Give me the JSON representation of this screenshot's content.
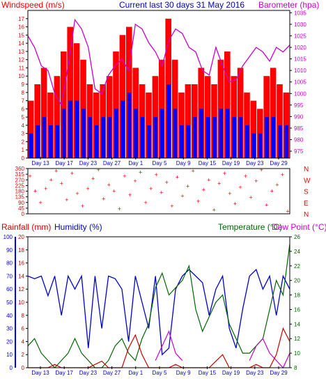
{
  "colors": {
    "frame": "#000000",
    "plot_bg": "#ffffff",
    "wind_speed": "#ff0000",
    "wind_avg": "#0000ff",
    "barometer": "#cc00cc",
    "direction": "#ff0000",
    "rainfall": "#cc0000",
    "humidity": "#0000cc",
    "temperature": "#006600",
    "dewpoint": "#cc00cc",
    "title_blue": "#0000cc",
    "left_axis_blue": "#0000ff",
    "left_axis_red": "#cc0000"
  },
  "header": {
    "wind_label": "Windspeed (m/s)",
    "center_title": "Current last 30 days 31 May 2016",
    "baro_label": "Barometer (hpa)"
  },
  "bottom_header": {
    "rain_label": "Rainfall (mm)",
    "humidity_label": "Humidity (%)",
    "temp_label": "Temperature (°C)",
    "dew_label": "Dew Point (°C)"
  },
  "x_ticks": [
    "Day 13",
    "Day 17",
    "Day 23",
    "Day 27",
    "Day 1",
    "Day 5",
    "Day 9",
    "Day 15",
    "Day 19",
    "Day 23",
    "Day 29"
  ],
  "chart_data": [
    {
      "type": "line",
      "title": "Current last 30 days 31 May 2016",
      "series": [
        {
          "name": "Windspeed (m/s)",
          "axis": "left",
          "ylim": [
            0,
            18
          ],
          "ticks": [
            0,
            1,
            2,
            3,
            4,
            5,
            6,
            7,
            8,
            9,
            10,
            11,
            12,
            13,
            14,
            15,
            16,
            17
          ],
          "values": [
            7,
            9,
            11,
            8,
            10,
            13,
            16,
            14,
            12,
            9,
            8,
            9,
            10,
            13,
            15,
            16,
            11,
            9,
            8,
            10,
            12,
            17,
            12,
            8,
            9,
            9,
            11,
            10,
            9,
            12,
            13,
            10,
            11,
            8,
            7,
            6,
            10,
            11,
            9,
            8
          ]
        },
        {
          "name": "Windspeed avg",
          "axis": "left",
          "values": [
            3,
            4,
            5,
            4,
            4,
            6,
            7,
            7,
            6,
            5,
            4,
            5,
            5,
            6,
            7,
            8,
            6,
            5,
            4,
            5,
            6,
            9,
            6,
            4,
            4,
            5,
            6,
            5,
            5,
            6,
            6,
            5,
            5,
            4,
            3,
            3,
            5,
            5,
            4,
            4
          ]
        },
        {
          "name": "Barometer (hpa)",
          "axis": "right",
          "ylim": [
            972,
            1036
          ],
          "ticks": [
            975,
            980,
            985,
            990,
            995,
            1000,
            1005,
            1010,
            1015,
            1020,
            1025,
            1030,
            1035
          ],
          "values": [
            1025,
            1020,
            1012,
            1010,
            1000,
            995,
            1012,
            1032,
            1028,
            1020,
            1002,
            1000,
            1008,
            1012,
            1015,
            1010,
            1030,
            1028,
            1022,
            1018,
            1012,
            1023,
            1028,
            1026,
            1020,
            1018,
            1010,
            1008,
            1020,
            1012,
            1005,
            1006,
            1012,
            1016,
            1020,
            1018,
            1014,
            1020,
            1018,
            1021
          ]
        }
      ]
    },
    {
      "type": "scatter",
      "series": [
        {
          "name": "Wind direction",
          "axis": "left",
          "ylim": [
            0,
            360
          ],
          "ticks": [
            0,
            45,
            90,
            135,
            180,
            225,
            270,
            315,
            360
          ],
          "compass_labels": [
            "N",
            "W",
            "S",
            "E",
            "N"
          ],
          "values": [
            300,
            180,
            90,
            200,
            270,
            340,
            240,
            110,
            320,
            160,
            60,
            200,
            280,
            350,
            120,
            230,
            180,
            40,
            300,
            150,
            260,
            330,
            90,
            200,
            310,
            170,
            250,
            60,
            290,
            140,
            220,
            340,
            100,
            190,
            270,
            30,
            240,
            320,
            160,
            80,
            210,
            300,
            130,
            260,
            350,
            70,
            180,
            230,
            310,
            20
          ]
        }
      ]
    },
    {
      "type": "line",
      "series": [
        {
          "name": "Rainfall (mm)",
          "axis": "left-inner",
          "ylim": [
            0,
            20
          ],
          "ticks": [
            0,
            2,
            4,
            6,
            8,
            10,
            12,
            14,
            16,
            18,
            20
          ],
          "values": [
            0,
            0,
            0,
            0,
            0.5,
            0,
            0,
            0,
            0,
            0,
            0.5,
            1,
            0,
            0,
            0,
            3,
            5,
            2,
            0,
            0,
            0,
            0,
            0.5,
            0,
            0,
            0,
            0,
            0,
            1,
            2,
            0,
            0,
            0,
            0,
            0.5,
            0,
            0,
            2,
            6,
            4
          ]
        },
        {
          "name": "Humidity (%)",
          "axis": "left-outer",
          "ylim": [
            0,
            100
          ],
          "ticks": [
            0,
            10,
            20,
            30,
            40,
            50,
            60,
            70,
            80,
            90,
            100
          ],
          "values": [
            70,
            68,
            70,
            55,
            70,
            40,
            70,
            60,
            70,
            15,
            70,
            30,
            70,
            68,
            60,
            20,
            70,
            50,
            30,
            70,
            10,
            15,
            60,
            70,
            75,
            70,
            65,
            40,
            60,
            70,
            30,
            15,
            45,
            70,
            75,
            60,
            70,
            40,
            70,
            60
          ]
        },
        {
          "name": "Temperature (°C)",
          "axis": "right",
          "ylim": [
            8,
            26
          ],
          "ticks": [
            8,
            10,
            12,
            14,
            16,
            18,
            20,
            22,
            24,
            26
          ],
          "values": [
            11,
            12,
            10,
            9,
            8,
            9,
            10,
            12,
            10,
            9,
            8,
            8,
            9,
            11,
            12,
            10,
            9,
            12,
            14,
            19,
            21,
            18,
            19,
            20,
            22,
            16,
            13,
            15,
            17,
            18,
            14,
            12,
            10,
            10,
            11,
            12,
            16,
            20,
            18,
            25
          ]
        },
        {
          "name": "Dew Point (°C)",
          "axis": "right",
          "values": [
            null,
            null,
            null,
            null,
            null,
            null,
            null,
            null,
            null,
            null,
            null,
            null,
            null,
            null,
            null,
            null,
            null,
            null,
            null,
            9,
            11,
            13,
            10,
            9,
            null,
            null,
            null,
            null,
            null,
            null,
            null,
            null,
            null,
            9,
            11,
            12,
            10,
            9,
            8,
            10
          ]
        }
      ]
    }
  ]
}
